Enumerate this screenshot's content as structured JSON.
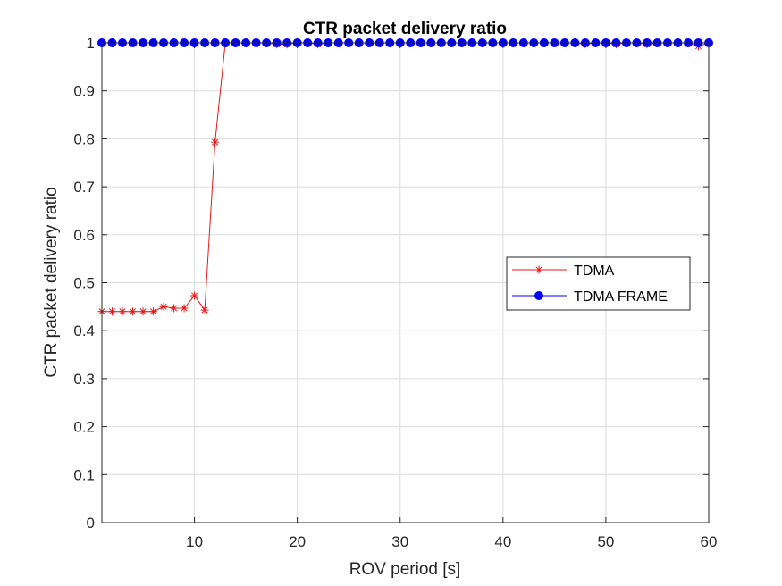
{
  "chart_data": {
    "type": "line",
    "title": "CTR packet delivery ratio",
    "xlabel": "ROV period [s]",
    "ylabel": "CTR packet delivery ratio",
    "xlim": [
      1,
      60
    ],
    "ylim": [
      0,
      1
    ],
    "xticks": [
      10,
      20,
      30,
      40,
      50,
      60
    ],
    "yticks": [
      0,
      0.1,
      0.2,
      0.3,
      0.4,
      0.5,
      0.6,
      0.7,
      0.8,
      0.9,
      1
    ],
    "grid": true,
    "legend_position": "center-right",
    "series": [
      {
        "name": "TDMA",
        "color": "#e41a1c",
        "marker": "asterisk",
        "x": [
          1,
          2,
          3,
          4,
          5,
          6,
          7,
          8,
          9,
          10,
          11,
          12,
          13,
          14,
          15,
          16,
          17,
          18,
          19,
          20,
          21,
          22,
          23,
          24,
          25,
          26,
          27,
          28,
          29,
          30,
          31,
          32,
          33,
          34,
          35,
          36,
          37,
          38,
          39,
          40,
          41,
          42,
          43,
          44,
          45,
          46,
          47,
          48,
          49,
          50,
          51,
          52,
          53,
          54,
          55,
          56,
          57,
          58,
          59,
          60
        ],
        "y": [
          0.44,
          0.44,
          0.44,
          0.44,
          0.44,
          0.44,
          0.45,
          0.447,
          0.447,
          0.473,
          0.443,
          0.793,
          1,
          1,
          1,
          1,
          1,
          0.997,
          0.997,
          1,
          1,
          0.997,
          1,
          1,
          1,
          1,
          1,
          1,
          1,
          1,
          1,
          1,
          1,
          1,
          1,
          1,
          1,
          1,
          1,
          1,
          1,
          1,
          1,
          1,
          1,
          1,
          1,
          0.997,
          1,
          1,
          0.997,
          1,
          1,
          0.997,
          1,
          1,
          1,
          1,
          0.993,
          1
        ]
      },
      {
        "name": "TDMA FRAME",
        "color": "#0000ff",
        "marker": "filled-circle",
        "x": [
          1,
          2,
          3,
          4,
          5,
          6,
          7,
          8,
          9,
          10,
          11,
          12,
          13,
          14,
          15,
          16,
          17,
          18,
          19,
          20,
          21,
          22,
          23,
          24,
          25,
          26,
          27,
          28,
          29,
          30,
          31,
          32,
          33,
          34,
          35,
          36,
          37,
          38,
          39,
          40,
          41,
          42,
          43,
          44,
          45,
          46,
          47,
          48,
          49,
          50,
          51,
          52,
          53,
          54,
          55,
          56,
          57,
          58,
          59,
          60
        ],
        "y": [
          1,
          1,
          1,
          1,
          1,
          1,
          1,
          1,
          1,
          1,
          1,
          1,
          1,
          1,
          1,
          1,
          1,
          1,
          1,
          1,
          1,
          1,
          1,
          1,
          1,
          1,
          1,
          1,
          1,
          1,
          1,
          1,
          1,
          1,
          1,
          1,
          1,
          1,
          1,
          1,
          1,
          1,
          1,
          1,
          1,
          1,
          1,
          1,
          1,
          1,
          1,
          1,
          1,
          1,
          1,
          1,
          1,
          1,
          1,
          1
        ]
      }
    ]
  }
}
